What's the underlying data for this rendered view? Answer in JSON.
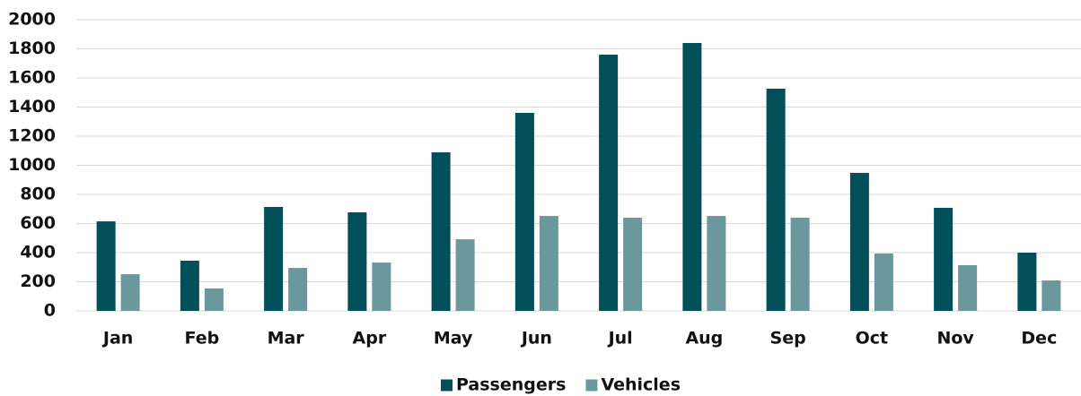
{
  "chart_data": {
    "type": "bar",
    "categories": [
      "Jan",
      "Feb",
      "Mar",
      "Apr",
      "May",
      "Jun",
      "Jul",
      "Aug",
      "Sep",
      "Oct",
      "Nov",
      "Dec"
    ],
    "series": [
      {
        "name": "Passengers",
        "color": "#024f5a",
        "values": [
          615,
          345,
          714,
          677,
          1089,
          1360,
          1760,
          1840,
          1526,
          948,
          708,
          400
        ]
      },
      {
        "name": "Vehicles",
        "color": "#6b989c",
        "values": [
          252,
          154,
          295,
          332,
          492,
          652,
          640,
          652,
          640,
          394,
          314,
          209
        ]
      }
    ],
    "ylim": [
      0,
      2000
    ],
    "yticks": [
      0,
      200,
      400,
      600,
      800,
      1000,
      1200,
      1400,
      1600,
      1800,
      2000
    ],
    "grid": true,
    "legend": "bottom"
  }
}
